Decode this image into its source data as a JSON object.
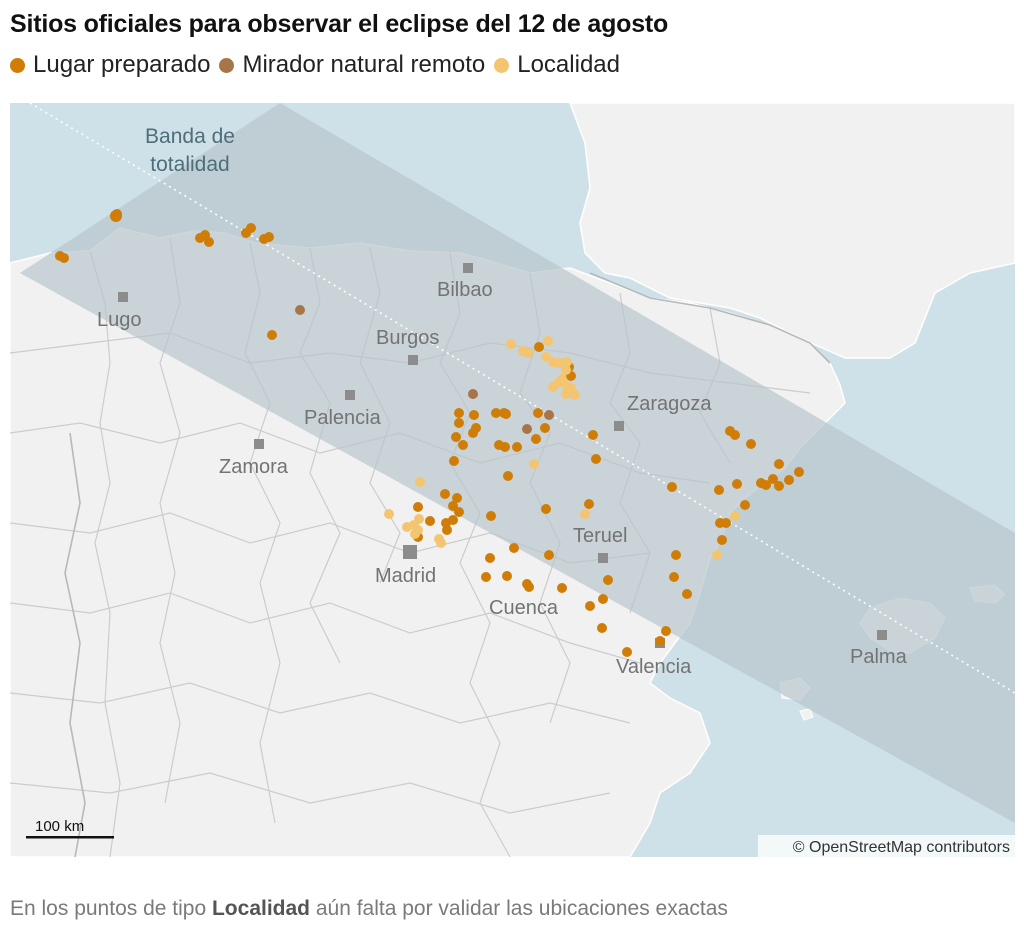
{
  "title": "Sitios oficiales para observar el eclipse del 12 de agosto",
  "legend": [
    {
      "label": "Lugar preparado",
      "color": "#cf7d06"
    },
    {
      "label": "Mirador natural remoto",
      "color": "#a87548"
    },
    {
      "label": "Localidad",
      "color": "#f3c571"
    }
  ],
  "map": {
    "totality_band_label_line1": "Banda de",
    "totality_band_label_line2": "totalidad",
    "cities": {
      "bilbao": "Bilbao",
      "lugo": "Lugo",
      "burgos": "Burgos",
      "palencia": "Palencia",
      "zaragoza": "Zaragoza",
      "zamora": "Zamora",
      "teruel": "Teruel",
      "madrid": "Madrid",
      "cuenca": "Cuenca",
      "valencia": "Valencia",
      "palma": "Palma"
    },
    "scale_label": "100 km",
    "attribution": "© OpenStreetMap contributors"
  },
  "footnote": {
    "before": "En los puntos de tipo ",
    "bold": "Localidad",
    "after": " aún falta por validar las ubicaciones exactas"
  }
}
